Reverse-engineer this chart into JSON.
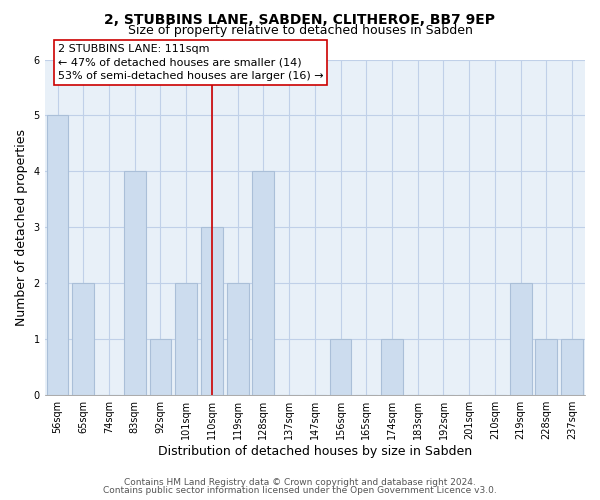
{
  "title_line1": "2, STUBBINS LANE, SABDEN, CLITHEROE, BB7 9EP",
  "title_line2": "Size of property relative to detached houses in Sabden",
  "xlabel": "Distribution of detached houses by size in Sabden",
  "ylabel": "Number of detached properties",
  "bar_labels": [
    "56sqm",
    "65sqm",
    "74sqm",
    "83sqm",
    "92sqm",
    "101sqm",
    "110sqm",
    "119sqm",
    "128sqm",
    "137sqm",
    "147sqm",
    "156sqm",
    "165sqm",
    "174sqm",
    "183sqm",
    "192sqm",
    "201sqm",
    "210sqm",
    "219sqm",
    "228sqm",
    "237sqm"
  ],
  "bar_values": [
    5,
    2,
    0,
    4,
    1,
    2,
    3,
    2,
    4,
    0,
    0,
    1,
    0,
    1,
    0,
    0,
    0,
    0,
    2,
    1,
    1
  ],
  "bar_color": "#ccdcee",
  "bar_edge_color": "#aabfd8",
  "property_line_index": 6,
  "property_line_color": "#cc0000",
  "annotation_line1": "2 STUBBINS LANE: 111sqm",
  "annotation_line2": "← 47% of detached houses are smaller (14)",
  "annotation_line3": "53% of semi-detached houses are larger (16) →",
  "ylim": [
    0,
    6
  ],
  "yticks": [
    0,
    1,
    2,
    3,
    4,
    5,
    6
  ],
  "grid_color": "#c0d0e8",
  "background_color": "#ffffff",
  "plot_bg_color": "#e8f0f8",
  "footer_line1": "Contains HM Land Registry data © Crown copyright and database right 2024.",
  "footer_line2": "Contains public sector information licensed under the Open Government Licence v3.0.",
  "title_fontsize": 10,
  "subtitle_fontsize": 9,
  "axis_label_fontsize": 9,
  "tick_fontsize": 7,
  "annotation_fontsize": 8,
  "footer_fontsize": 6.5
}
